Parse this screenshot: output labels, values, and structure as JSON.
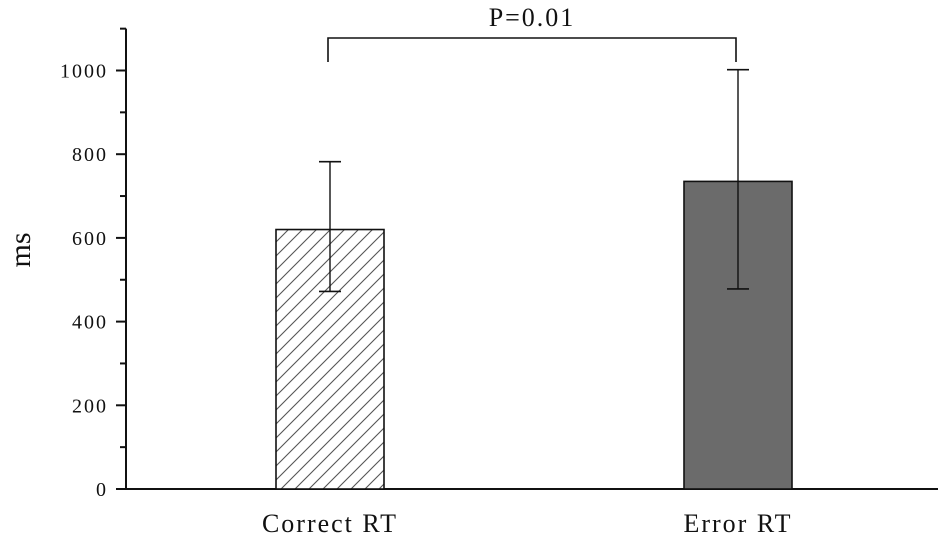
{
  "chart_data": {
    "type": "bar",
    "categories": [
      "Correct RT",
      "Error RT"
    ],
    "series": [
      {
        "values": [
          620,
          735
        ],
        "error_upper": [
          782,
          1002
        ],
        "error_lower": [
          472,
          478
        ],
        "fills": [
          "hatch",
          "#6b6b6b"
        ]
      }
    ],
    "xlabel": "",
    "ylabel": "ms",
    "ylim": [
      0,
      1100
    ],
    "yticks": [
      0,
      200,
      400,
      600,
      800,
      1000
    ],
    "yticks_minor": [
      100,
      300,
      500,
      700,
      900,
      1100
    ],
    "grid": false,
    "annotations": [
      {
        "text": "P=0.01",
        "from_category": 0,
        "to_category": 1
      }
    ]
  }
}
